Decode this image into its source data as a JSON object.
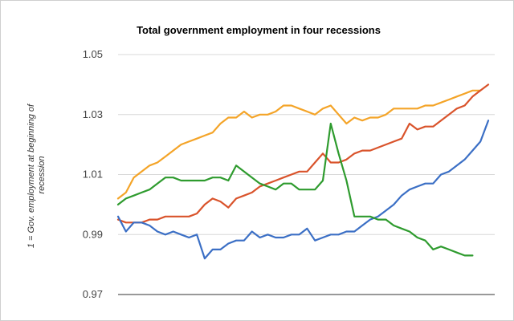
{
  "chart_data": {
    "type": "line",
    "title": "Total government employment in four recessions",
    "xlabel": "",
    "ylabel_lines": [
      "1 = Gov. employment at beginning of",
      "recession"
    ],
    "ylim": [
      0.97,
      1.05
    ],
    "yticks": [
      0.97,
      0.99,
      1.01,
      1.03,
      1.05
    ],
    "ytick_labels": [
      "0.97",
      "0.99",
      "1.01",
      "1.03",
      "1.05"
    ],
    "grid": true,
    "legend": "none",
    "series": [
      {
        "color": "#f4a428",
        "values": [
          1.002,
          1.004,
          1.009,
          1.011,
          1.013,
          1.014,
          1.016,
          1.018,
          1.02,
          1.021,
          1.022,
          1.023,
          1.024,
          1.027,
          1.029,
          1.029,
          1.031,
          1.029,
          1.03,
          1.03,
          1.031,
          1.033,
          1.033,
          1.032,
          1.031,
          1.03,
          1.032,
          1.033,
          1.03,
          1.027,
          1.029,
          1.028,
          1.029,
          1.029,
          1.03,
          1.032,
          1.032,
          1.032,
          1.032,
          1.033,
          1.033,
          1.034,
          1.035,
          1.036,
          1.037,
          1.038,
          1.038
        ]
      },
      {
        "color": "#d9532b",
        "values": [
          0.995,
          0.994,
          0.994,
          0.994,
          0.995,
          0.995,
          0.996,
          0.996,
          0.996,
          0.996,
          0.997,
          1.0,
          1.002,
          1.001,
          0.999,
          1.002,
          1.003,
          1.004,
          1.006,
          1.007,
          1.008,
          1.009,
          1.01,
          1.011,
          1.011,
          1.014,
          1.017,
          1.014,
          1.014,
          1.015,
          1.017,
          1.018,
          1.018,
          1.019,
          1.02,
          1.021,
          1.022,
          1.027,
          1.025,
          1.026,
          1.026,
          1.028,
          1.03,
          1.032,
          1.033,
          1.036,
          1.038,
          1.04
        ]
      },
      {
        "color": "#3b6fc5",
        "values": [
          0.996,
          0.991,
          0.994,
          0.994,
          0.993,
          0.991,
          0.99,
          0.991,
          0.99,
          0.989,
          0.99,
          0.982,
          0.985,
          0.985,
          0.987,
          0.988,
          0.988,
          0.991,
          0.989,
          0.99,
          0.989,
          0.989,
          0.99,
          0.99,
          0.992,
          0.988,
          0.989,
          0.99,
          0.99,
          0.991,
          0.991,
          0.993,
          0.995,
          0.996,
          0.998,
          1.0,
          1.003,
          1.005,
          1.006,
          1.007,
          1.007,
          1.01,
          1.011,
          1.013,
          1.015,
          1.018,
          1.021,
          1.028
        ]
      },
      {
        "color": "#2e9b2e",
        "values": [
          1.0,
          1.002,
          1.003,
          1.004,
          1.005,
          1.007,
          1.009,
          1.009,
          1.008,
          1.008,
          1.008,
          1.008,
          1.009,
          1.009,
          1.008,
          1.013,
          1.011,
          1.009,
          1.007,
          1.006,
          1.005,
          1.007,
          1.007,
          1.005,
          1.005,
          1.005,
          1.008,
          1.027,
          1.017,
          1.008,
          0.996,
          0.996,
          0.996,
          0.995,
          0.995,
          0.993,
          0.992,
          0.991,
          0.989,
          0.988,
          0.985,
          0.986,
          0.985,
          0.984,
          0.983,
          0.983
        ]
      }
    ]
  }
}
